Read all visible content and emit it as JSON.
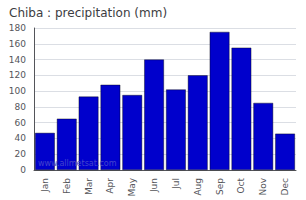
{
  "chart_data": {
    "type": "bar",
    "title": "Chiba : precipitation (mm)",
    "categories": [
      "Jan",
      "Feb",
      "Mar",
      "Apr",
      "May",
      "Jun",
      "Jul",
      "Aug",
      "Sep",
      "Oct",
      "Nov",
      "Dec"
    ],
    "values": [
      47,
      65,
      93,
      108,
      95,
      140,
      102,
      120,
      175,
      155,
      85,
      46
    ],
    "color": "#0000cc",
    "ylim": [
      0,
      180
    ],
    "yticks": [
      0,
      20,
      40,
      60,
      80,
      100,
      120,
      140,
      160,
      180
    ],
    "grid": true,
    "annotation": "www.allmetsat.com"
  }
}
